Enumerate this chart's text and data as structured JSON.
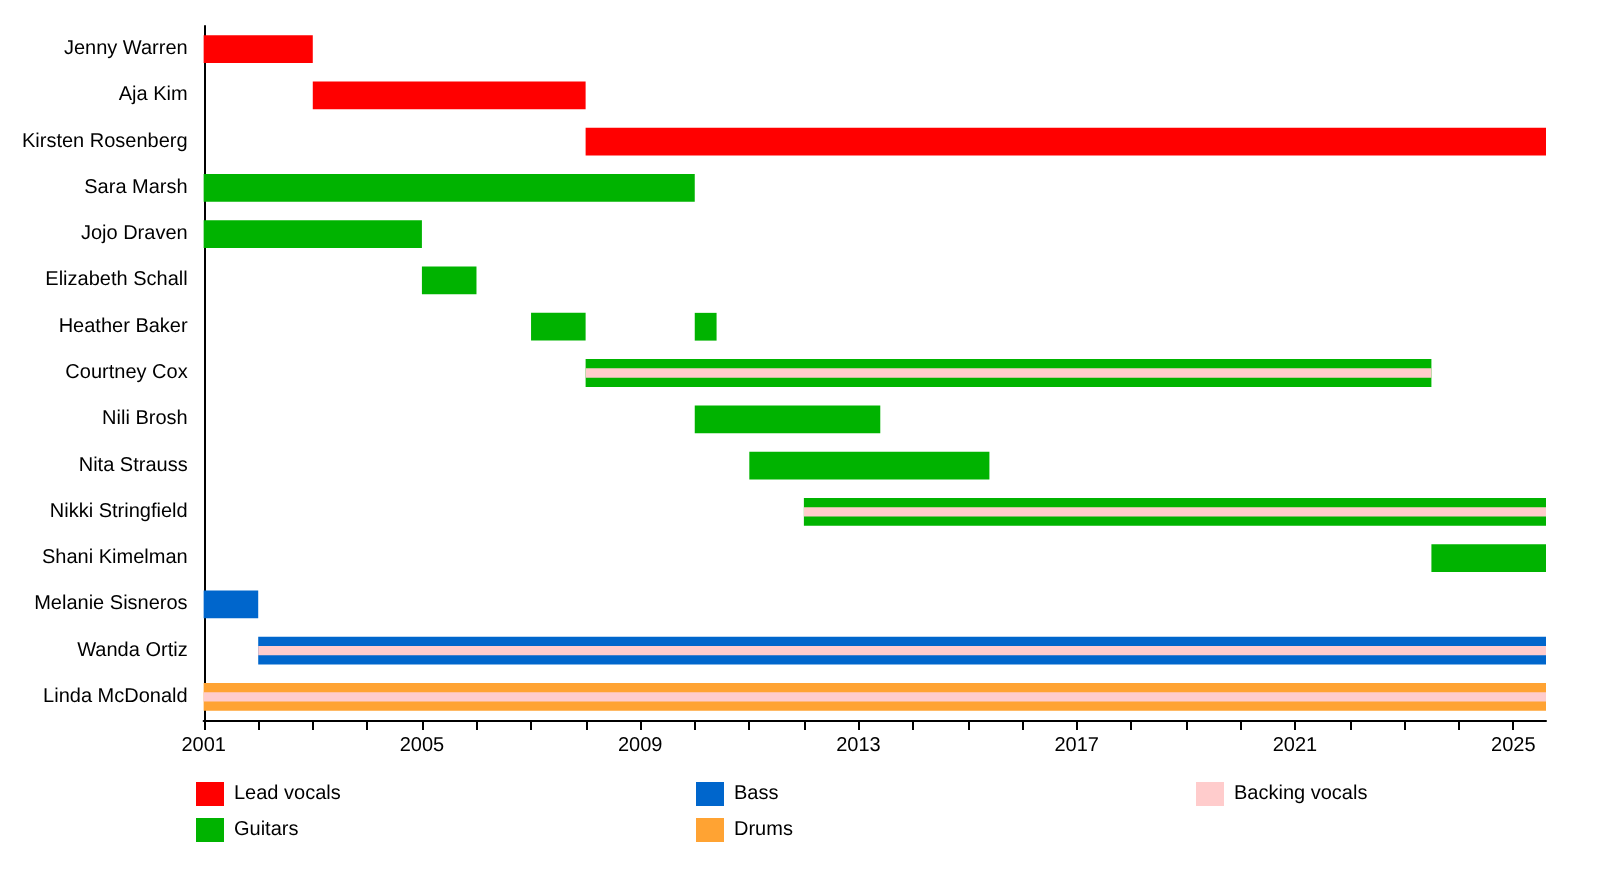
{
  "chart_data": {
    "type": "bar",
    "orientation": "horizontal",
    "categories": [
      "Jenny Warren",
      "Aja Kim",
      "Kirsten Rosenberg",
      "Sara Marsh",
      "Jojo Draven",
      "Elizabeth Schall",
      "Heather Baker",
      "Courtney Cox",
      "Nili Brosh",
      "Nita Strauss",
      "Nikki Stringfield",
      "Shani Kimelman",
      "Melanie Sisneros",
      "Wanda Ortiz",
      "Linda McDonald"
    ],
    "series": [
      {
        "name": "Lead vocals",
        "color": "#ff0000",
        "base": [
          2001,
          2003,
          2008,
          null,
          null,
          null,
          null,
          null,
          null,
          null,
          null,
          null,
          null,
          null,
          null
        ],
        "values": [
          2,
          5,
          17.6,
          null,
          null,
          null,
          null,
          null,
          null,
          null,
          null,
          null,
          null,
          null,
          null
        ]
      },
      {
        "name": "Guitars",
        "color": "#00b300",
        "base": [
          null,
          null,
          null,
          2001,
          2001,
          2005,
          2007,
          2008,
          2010,
          2011,
          2012,
          2023.5,
          null,
          null,
          null
        ],
        "values": [
          null,
          null,
          null,
          9,
          4,
          1,
          1,
          15.5,
          3.4,
          4.4,
          13.6,
          2.1,
          null,
          null,
          null
        ]
      },
      {
        "color": "#00b300",
        "base": [
          null,
          null,
          null,
          null,
          null,
          null,
          2010,
          null,
          null,
          null,
          null,
          null,
          null,
          null,
          null
        ],
        "values": [
          null,
          null,
          null,
          null,
          null,
          null,
          0.4,
          null,
          null,
          null,
          null,
          null,
          null,
          null,
          null
        ]
      },
      {
        "name": "Bass",
        "color": "#0066cc",
        "base": [
          null,
          null,
          null,
          null,
          null,
          null,
          null,
          null,
          null,
          null,
          null,
          null,
          2001,
          2002,
          null
        ],
        "values": [
          null,
          null,
          null,
          null,
          null,
          null,
          null,
          null,
          null,
          null,
          null,
          null,
          1,
          23.6,
          null
        ]
      },
      {
        "name": "Drums",
        "color": "#ffa333",
        "base": [
          null,
          null,
          null,
          null,
          null,
          null,
          null,
          null,
          null,
          null,
          null,
          null,
          null,
          null,
          2001
        ],
        "values": [
          null,
          null,
          null,
          null,
          null,
          null,
          null,
          null,
          null,
          null,
          null,
          null,
          null,
          null,
          24.6
        ]
      },
      {
        "name": "Backing vocals",
        "color": "#ffcccc",
        "base": [
          null,
          null,
          null,
          null,
          null,
          null,
          null,
          2008,
          null,
          null,
          2012,
          null,
          null,
          2002,
          2001
        ],
        "values": [
          null,
          null,
          null,
          null,
          null,
          null,
          null,
          15.5,
          null,
          null,
          13.6,
          null,
          null,
          23.6,
          24.6
        ]
      }
    ],
    "xlim": [
      2001,
      2025.6
    ],
    "xticks": [
      2001,
      {
        "value": 2002,
        "label": null
      },
      {
        "value": 2003,
        "label": null
      },
      {
        "value": 2004,
        "label": null
      },
      2005,
      {
        "value": 2006,
        "label": null
      },
      {
        "value": 2007,
        "label": null
      },
      {
        "value": 2008,
        "label": null
      },
      2009,
      {
        "value": 2010,
        "label": null
      },
      {
        "value": 2011,
        "label": null
      },
      {
        "value": 2012,
        "label": null
      },
      2013,
      {
        "value": 2014,
        "label": null
      },
      {
        "value": 2015,
        "label": null
      },
      {
        "value": 2016,
        "label": null
      },
      2017,
      {
        "value": 2018,
        "label": null
      },
      {
        "value": 2019,
        "label": null
      },
      {
        "value": 2020,
        "label": null
      },
      2021,
      {
        "value": 2022,
        "label": null
      },
      {
        "value": 2023,
        "label": null
      },
      {
        "value": 2024,
        "label": null
      },
      2025
    ],
    "grid": false,
    "legend": "bottom"
  }
}
